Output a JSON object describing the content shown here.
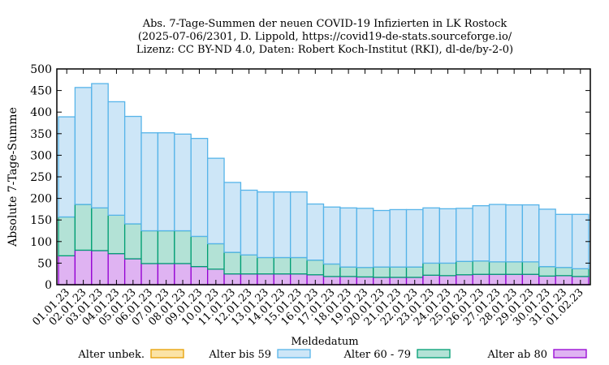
{
  "chart_data": {
    "type": "bar",
    "stacked": true,
    "title": [
      "Abs. 7-Tage-Summen der neuen COVID-19 Infizierten in LK Rostock",
      "(2025-07-06/2301, D. Lippold, https://covid19-de-stats.sourceforge.io/",
      "Lizenz: CC BY-ND 4.0, Daten: Robert Koch-Institut (RKI), dl-de/by-2-0)"
    ],
    "xlabel": "Meldedatum",
    "ylabel": "Absolute 7-Tage-Summe",
    "ylim": [
      0,
      500
    ],
    "yticks": [
      0,
      50,
      100,
      150,
      200,
      250,
      300,
      350,
      400,
      450,
      500
    ],
    "categories": [
      "01.01.23",
      "02.01.23",
      "03.01.23",
      "04.01.23",
      "05.01.23",
      "06.01.23",
      "07.01.23",
      "08.01.23",
      "09.01.23",
      "10.01.23",
      "11.01.23",
      "12.01.23",
      "13.01.23",
      "14.01.23",
      "15.01.23",
      "16.01.23",
      "17.01.23",
      "18.01.23",
      "19.01.23",
      "20.01.23",
      "21.01.23",
      "22.01.23",
      "23.01.23",
      "24.01.23",
      "25.01.23",
      "26.01.23",
      "27.01.23",
      "28.01.23",
      "29.01.23",
      "30.01.23",
      "31.01.23",
      "01.02.23"
    ],
    "series": [
      {
        "name": "Alter ab 80",
        "color": "#dfb3f2",
        "edge": "#9400d3",
        "values": [
          67,
          80,
          79,
          72,
          60,
          49,
          49,
          49,
          42,
          36,
          25,
          25,
          25,
          25,
          25,
          23,
          19,
          19,
          18,
          17,
          17,
          17,
          22,
          21,
          23,
          24,
          24,
          24,
          24,
          20,
          21,
          19
        ]
      },
      {
        "name": "Alter 60 - 79",
        "color": "#b3e2d6",
        "edge": "#009e73",
        "values": [
          90,
          106,
          99,
          89,
          81,
          76,
          76,
          76,
          70,
          59,
          50,
          44,
          38,
          38,
          38,
          34,
          29,
          22,
          22,
          24,
          24,
          24,
          28,
          29,
          31,
          31,
          29,
          29,
          29,
          22,
          19,
          18
        ]
      },
      {
        "name": "Alter bis 59",
        "color": "#cde6f7",
        "edge": "#56b4e9",
        "values": [
          232,
          271,
          288,
          263,
          249,
          227,
          227,
          224,
          227,
          198,
          162,
          150,
          152,
          152,
          152,
          130,
          132,
          137,
          137,
          131,
          133,
          133,
          128,
          126,
          123,
          128,
          133,
          132,
          132,
          133,
          123,
          126
        ]
      },
      {
        "name": "Alter unbek.",
        "color": "#fbe3a6",
        "edge": "#e69f00",
        "values": [
          0,
          0,
          0,
          0,
          0,
          0,
          0,
          0,
          0,
          0,
          0,
          0,
          0,
          0,
          0,
          0,
          0,
          0,
          0,
          0,
          0,
          0,
          0,
          0,
          0,
          0,
          0,
          0,
          0,
          0,
          0,
          0
        ]
      }
    ],
    "legend_order": [
      "Alter unbek.",
      "Alter bis 59",
      "Alter 60 - 79",
      "Alter ab 80"
    ],
    "legend_placement": "bottom",
    "grid": false
  }
}
